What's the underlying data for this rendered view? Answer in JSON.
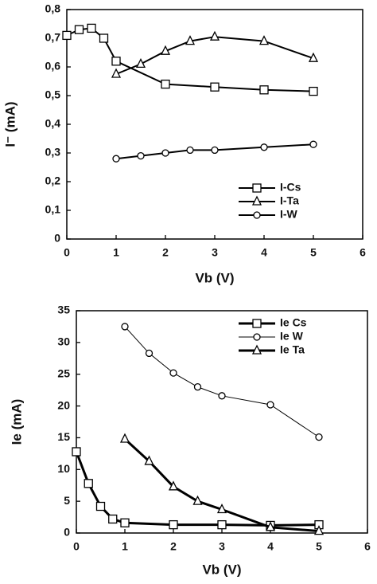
{
  "chart_data": [
    {
      "type": "line",
      "x_label": "Vb (V)",
      "y_label": "I⁻ (mA)",
      "xlim": [
        0,
        6
      ],
      "xticks": [
        0,
        1,
        2,
        3,
        4,
        5,
        6
      ],
      "ylim": [
        0,
        0.8
      ],
      "yticks": [
        0,
        {
          "value": 0.1,
          "label": "0,1"
        },
        {
          "value": 0.2,
          "label": "0,2"
        },
        {
          "value": 0.3,
          "label": "0,3"
        },
        {
          "value": 0.4,
          "label": "0,4"
        },
        {
          "value": 0.5,
          "label": "0,5"
        },
        {
          "value": 0.6,
          "label": "0,6"
        },
        {
          "value": 0.7,
          "label": "0,7"
        },
        {
          "value": 0.8,
          "label": "0,8"
        }
      ],
      "legend": "lower right",
      "series": [
        {
          "name": "I-Cs",
          "color": "#000000",
          "marker": "square",
          "line_width": 2,
          "x": [
            0,
            0.25,
            0.5,
            0.75,
            1,
            2,
            3,
            4,
            5
          ],
          "values": [
            0.71,
            0.73,
            0.735,
            0.7,
            0.62,
            0.54,
            0.53,
            0.52,
            0.515
          ]
        },
        {
          "name": "I-Ta",
          "color": "#000000",
          "marker": "triangle",
          "line_width": 2,
          "x": [
            1,
            1.5,
            2,
            2.5,
            3,
            4,
            5
          ],
          "values": [
            0.575,
            0.61,
            0.655,
            0.69,
            0.705,
            0.69,
            0.63
          ]
        },
        {
          "name": "I-W",
          "color": "#000000",
          "marker": "circle",
          "line_width": 2,
          "x": [
            1,
            1.5,
            2,
            2.5,
            3,
            4,
            5
          ],
          "values": [
            0.28,
            0.29,
            0.3,
            0.31,
            0.31,
            0.32,
            0.33
          ]
        }
      ]
    },
    {
      "type": "line",
      "x_label": "Vb (V)",
      "y_label": "Ie (mA)",
      "xlim": [
        0,
        6
      ],
      "xticks": [
        0,
        1,
        2,
        3,
        4,
        5,
        6
      ],
      "ylim": [
        0,
        35
      ],
      "yticks": [
        0,
        5,
        10,
        15,
        20,
        25,
        30,
        35
      ],
      "legend": "upper right",
      "series": [
        {
          "name": "Ie Cs",
          "color": "#000000",
          "marker": "square",
          "line_width": 3,
          "x": [
            0,
            0.25,
            0.5,
            0.75,
            1,
            2,
            3,
            4,
            5
          ],
          "values": [
            12.8,
            7.8,
            4.2,
            2.2,
            1.6,
            1.3,
            1.3,
            1.2,
            1.3
          ]
        },
        {
          "name": "Ie W",
          "color": "#000000",
          "marker": "circle",
          "line_width": 1,
          "x": [
            1,
            1.5,
            2,
            2.5,
            3,
            4,
            5
          ],
          "values": [
            32.5,
            28.3,
            25.2,
            23,
            21.6,
            20.2,
            15.1
          ]
        },
        {
          "name": "Ie Ta",
          "color": "#000000",
          "marker": "triangle",
          "line_width": 3,
          "x": [
            1,
            1.5,
            2,
            2.5,
            3,
            4,
            5
          ],
          "values": [
            14.8,
            11.3,
            7.3,
            5.0,
            3.7,
            0.9,
            0.3
          ]
        }
      ]
    }
  ]
}
